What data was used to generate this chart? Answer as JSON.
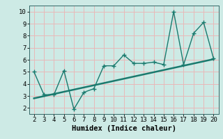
{
  "x_data": [
    2,
    3,
    4,
    5,
    6,
    7,
    8,
    9,
    10,
    11,
    12,
    13,
    14,
    15,
    16,
    17,
    18,
    19,
    20
  ],
  "y_data": [
    5.0,
    3.1,
    3.1,
    5.1,
    1.9,
    3.3,
    3.6,
    5.5,
    5.5,
    6.4,
    5.7,
    5.7,
    5.8,
    5.6,
    10.0,
    5.6,
    8.2,
    9.1,
    6.1
  ],
  "trend_x": [
    2,
    20
  ],
  "trend_y": [
    2.8,
    6.05
  ],
  "line_color": "#1a7a6e",
  "bg_color": "#cdeae5",
  "grid_color": "#e8b8b8",
  "xlabel": "Humidex (Indice chaleur)",
  "xlim": [
    1.5,
    20.5
  ],
  "ylim": [
    1.5,
    10.5
  ],
  "xticks": [
    2,
    3,
    4,
    5,
    6,
    7,
    8,
    9,
    10,
    11,
    12,
    13,
    14,
    15,
    16,
    17,
    18,
    19,
    20
  ],
  "yticks": [
    2,
    3,
    4,
    5,
    6,
    7,
    8,
    9,
    10
  ],
  "tick_fontsize": 6.5,
  "xlabel_fontsize": 7.5
}
